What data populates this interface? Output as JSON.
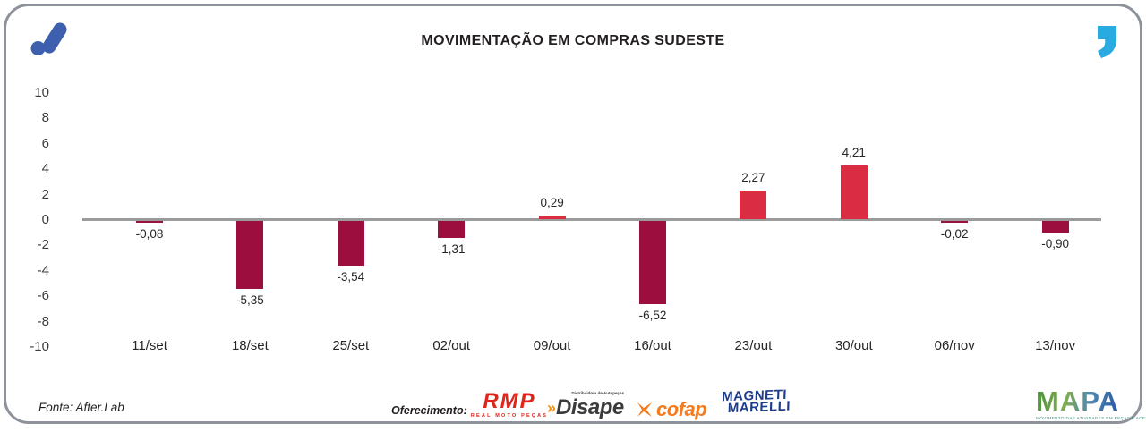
{
  "header": {
    "title": "MOVIMENTAÇÃO EM COMPRAS SUDESTE",
    "logo_icon": "after-lab-mark",
    "quote_icon": "quote-mark",
    "logo_color": "#3d5fae",
    "quote_color": "#29abe2"
  },
  "chart_data": {
    "type": "bar",
    "title": "MOVIMENTAÇÃO EM COMPRAS SUDESTE",
    "categories": [
      "11/set",
      "18/set",
      "25/set",
      "02/out",
      "09/out",
      "16/out",
      "23/out",
      "30/out",
      "06/nov",
      "13/nov"
    ],
    "values": [
      -0.08,
      -5.35,
      -3.54,
      -1.31,
      0.29,
      -6.52,
      2.27,
      4.21,
      -0.02,
      -0.9
    ],
    "labels": [
      "-0,08",
      "-5,35",
      "-3,54",
      "-1,31",
      "0,29",
      "-6,52",
      "2,27",
      "4,21",
      "-0,02",
      "-0,90"
    ],
    "ytick_labels": [
      "10",
      "8",
      "6",
      "4",
      "2",
      "0",
      "-2",
      "-4",
      "-6",
      "-8",
      "-10"
    ],
    "ylim": [
      -10,
      10
    ],
    "ytick_step": 2,
    "grid": false,
    "legend": null,
    "positive_color": "#da2c43",
    "negative_color": "#9b0e3e",
    "zero_line_color": "#9b9b9b"
  },
  "footer": {
    "source": "Fonte: After.Lab",
    "sponsor_label": "Oferecimento:",
    "sponsors": {
      "rmp": {
        "name": "RMP",
        "caption": "REAL MOTO PEÇAS",
        "color": "#e0251b"
      },
      "disape": {
        "prefix": "»",
        "name": "Disape",
        "caption": "Distribuidora de Autopeças",
        "color": "#3b3b3d"
      },
      "cofap": {
        "name": "cofap",
        "color": "#f47b20"
      },
      "magneti": {
        "line1": "MAGNETI",
        "line2": "MARELLI",
        "color": "#1c3c8c"
      },
      "mapa": {
        "name": "MAPA",
        "caption": "MOVIMENTO DAS ATIVIDADES EM PEÇAS E ACESSÓRIOS"
      }
    }
  }
}
